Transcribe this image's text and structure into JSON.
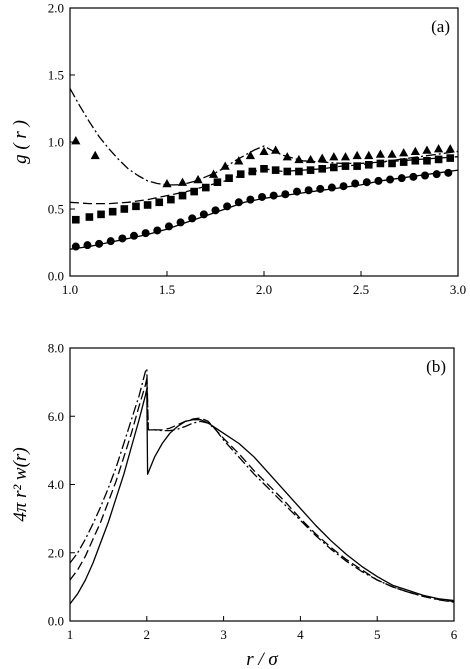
{
  "chart_data": [
    {
      "type": "line",
      "panel_label": "(a)",
      "ylabel": "g ( r )",
      "xlim": [
        1.0,
        3.0
      ],
      "ylim": [
        0.0,
        2.0
      ],
      "xticks": [
        "1.0",
        "1.5",
        "2.0",
        "2.5",
        "3.0"
      ],
      "yticks": [
        "0.0",
        "0.5",
        "1.0",
        "1.5",
        "2.0"
      ],
      "grid": false,
      "series": [
        {
          "style": "dash-dot",
          "kind": "line",
          "x": [
            1.0,
            1.05,
            1.1,
            1.15,
            1.2,
            1.25,
            1.3,
            1.35,
            1.4,
            1.45,
            1.5,
            1.55,
            1.6,
            1.65,
            1.7,
            1.75,
            1.8,
            1.85,
            1.9,
            1.95,
            2.0,
            2.05,
            2.1,
            2.2,
            2.3,
            2.4,
            2.5,
            2.6,
            2.7,
            2.8,
            2.9,
            3.0
          ],
          "y": [
            1.4,
            1.27,
            1.15,
            1.04,
            0.95,
            0.87,
            0.8,
            0.75,
            0.71,
            0.69,
            0.68,
            0.68,
            0.69,
            0.71,
            0.74,
            0.77,
            0.81,
            0.86,
            0.9,
            0.94,
            0.97,
            0.93,
            0.9,
            0.86,
            0.85,
            0.84,
            0.84,
            0.85,
            0.87,
            0.89,
            0.91,
            0.93
          ]
        },
        {
          "style": "dashed",
          "kind": "line",
          "x": [
            1.0,
            1.1,
            1.2,
            1.3,
            1.4,
            1.5,
            1.6,
            1.7,
            1.8,
            1.9,
            2.0,
            2.05,
            2.1,
            2.2,
            2.3,
            2.4,
            2.5,
            2.6,
            2.7,
            2.8,
            2.9,
            3.0
          ],
          "y": [
            0.55,
            0.54,
            0.54,
            0.55,
            0.57,
            0.6,
            0.63,
            0.67,
            0.71,
            0.76,
            0.8,
            0.79,
            0.78,
            0.79,
            0.8,
            0.82,
            0.83,
            0.85,
            0.86,
            0.87,
            0.88,
            0.89
          ]
        },
        {
          "style": "solid",
          "kind": "line",
          "x": [
            1.0,
            1.1,
            1.2,
            1.3,
            1.4,
            1.5,
            1.6,
            1.7,
            1.8,
            1.9,
            2.0,
            2.1,
            2.2,
            2.3,
            2.4,
            2.5,
            2.6,
            2.7,
            2.8,
            2.9,
            3.0
          ],
          "y": [
            0.2,
            0.22,
            0.25,
            0.28,
            0.31,
            0.35,
            0.4,
            0.45,
            0.5,
            0.55,
            0.58,
            0.6,
            0.62,
            0.64,
            0.66,
            0.68,
            0.71,
            0.73,
            0.75,
            0.77,
            0.79
          ]
        },
        {
          "marker": "triangle",
          "kind": "scatter",
          "x": [
            1.03,
            1.13,
            1.5,
            1.58,
            1.66,
            1.74,
            1.8,
            1.87,
            1.93,
            2.0,
            2.06,
            2.12,
            2.18,
            2.24,
            2.3,
            2.36,
            2.42,
            2.48,
            2.54,
            2.6,
            2.66,
            2.72,
            2.78,
            2.84,
            2.9,
            2.96
          ],
          "y": [
            1.01,
            0.9,
            0.69,
            0.7,
            0.72,
            0.76,
            0.82,
            0.86,
            0.9,
            0.93,
            0.94,
            0.89,
            0.87,
            0.87,
            0.88,
            0.89,
            0.89,
            0.9,
            0.9,
            0.91,
            0.91,
            0.92,
            0.93,
            0.94,
            0.95,
            0.95
          ]
        },
        {
          "marker": "square",
          "kind": "scatter",
          "x": [
            1.03,
            1.1,
            1.16,
            1.22,
            1.28,
            1.34,
            1.4,
            1.46,
            1.52,
            1.58,
            1.64,
            1.7,
            1.76,
            1.82,
            1.88,
            1.94,
            2.0,
            2.06,
            2.12,
            2.18,
            2.24,
            2.3,
            2.36,
            2.42,
            2.48,
            2.54,
            2.6,
            2.66,
            2.72,
            2.78,
            2.84,
            2.9,
            2.96
          ],
          "y": [
            0.42,
            0.44,
            0.46,
            0.48,
            0.5,
            0.52,
            0.53,
            0.55,
            0.57,
            0.6,
            0.63,
            0.66,
            0.7,
            0.73,
            0.76,
            0.78,
            0.8,
            0.79,
            0.78,
            0.78,
            0.79,
            0.8,
            0.81,
            0.82,
            0.82,
            0.83,
            0.84,
            0.84,
            0.85,
            0.86,
            0.86,
            0.87,
            0.88
          ]
        },
        {
          "marker": "circle",
          "kind": "scatter",
          "x": [
            1.03,
            1.09,
            1.15,
            1.21,
            1.27,
            1.33,
            1.39,
            1.45,
            1.51,
            1.57,
            1.63,
            1.69,
            1.75,
            1.81,
            1.87,
            1.93,
            1.99,
            2.05,
            2.11,
            2.17,
            2.23,
            2.29,
            2.35,
            2.41,
            2.47,
            2.53,
            2.59,
            2.65,
            2.71,
            2.77,
            2.83,
            2.89,
            2.95
          ],
          "y": [
            0.22,
            0.23,
            0.24,
            0.26,
            0.28,
            0.3,
            0.32,
            0.34,
            0.37,
            0.4,
            0.43,
            0.46,
            0.49,
            0.52,
            0.55,
            0.57,
            0.59,
            0.6,
            0.61,
            0.63,
            0.64,
            0.65,
            0.66,
            0.67,
            0.69,
            0.7,
            0.71,
            0.72,
            0.73,
            0.74,
            0.75,
            0.76,
            0.77
          ]
        }
      ]
    },
    {
      "type": "line",
      "panel_label": "(b)",
      "xlabel": "r / σ",
      "ylabel": "4π r² w(r)",
      "xlim": [
        1,
        6
      ],
      "ylim": [
        0.0,
        8.0
      ],
      "xticks": [
        "1",
        "2",
        "3",
        "4",
        "5",
        "6"
      ],
      "yticks": [
        "0.0",
        "2.0",
        "4.0",
        "6.0",
        "8.0"
      ],
      "grid": false,
      "series": [
        {
          "style": "solid",
          "kind": "line",
          "x": [
            1.0,
            1.1,
            1.2,
            1.3,
            1.4,
            1.5,
            1.6,
            1.7,
            1.8,
            1.9,
            1.98,
            2.0,
            2.01,
            2.1,
            2.2,
            2.3,
            2.4,
            2.5,
            2.6,
            2.7,
            2.8,
            2.9,
            3.0,
            3.2,
            3.4,
            3.6,
            3.8,
            4.0,
            4.2,
            4.4,
            4.6,
            4.8,
            5.0,
            5.2,
            5.4,
            5.6,
            5.8,
            6.0
          ],
          "y": [
            0.5,
            0.8,
            1.2,
            1.7,
            2.3,
            2.9,
            3.6,
            4.3,
            5.1,
            5.9,
            6.6,
            6.8,
            4.3,
            4.8,
            5.2,
            5.5,
            5.7,
            5.85,
            5.9,
            5.9,
            5.8,
            5.65,
            5.5,
            5.2,
            4.8,
            4.3,
            3.8,
            3.3,
            2.8,
            2.35,
            1.95,
            1.6,
            1.3,
            1.05,
            0.9,
            0.75,
            0.65,
            0.6
          ]
        },
        {
          "style": "dashed",
          "kind": "line",
          "x": [
            1.0,
            1.1,
            1.2,
            1.3,
            1.4,
            1.5,
            1.6,
            1.7,
            1.8,
            1.9,
            1.98,
            2.0,
            2.02,
            2.1,
            2.2,
            2.3,
            2.4,
            2.5,
            2.6,
            2.7,
            2.8,
            2.9,
            3.0,
            3.2,
            3.4,
            3.6,
            3.8,
            4.0,
            4.2,
            4.4,
            4.6,
            4.8,
            5.0,
            5.2,
            5.4,
            5.6,
            5.8,
            6.0
          ],
          "y": [
            1.2,
            1.5,
            1.9,
            2.4,
            2.9,
            3.5,
            4.1,
            4.8,
            5.5,
            6.3,
            6.9,
            7.1,
            5.6,
            5.6,
            5.6,
            5.65,
            5.75,
            5.85,
            5.92,
            5.95,
            5.85,
            5.6,
            5.35,
            4.9,
            4.4,
            3.95,
            3.5,
            3.0,
            2.55,
            2.15,
            1.8,
            1.5,
            1.2,
            1.0,
            0.85,
            0.72,
            0.63,
            0.57
          ]
        },
        {
          "style": "dash-dot",
          "kind": "line",
          "x": [
            1.0,
            1.1,
            1.2,
            1.3,
            1.4,
            1.5,
            1.6,
            1.7,
            1.8,
            1.9,
            1.98,
            2.0,
            2.02,
            2.1,
            2.2,
            2.3,
            2.4,
            2.5,
            2.6,
            2.7,
            2.8,
            2.9,
            3.0,
            3.2,
            3.4,
            3.6,
            3.8,
            4.0,
            4.2,
            4.4,
            4.6,
            4.8,
            5.0,
            5.2,
            5.4,
            5.6,
            5.8,
            6.0
          ],
          "y": [
            1.7,
            2.0,
            2.4,
            2.85,
            3.35,
            3.9,
            4.5,
            5.2,
            5.9,
            6.6,
            7.3,
            7.4,
            5.6,
            5.6,
            5.58,
            5.58,
            5.62,
            5.7,
            5.8,
            5.85,
            5.8,
            5.6,
            5.3,
            4.8,
            4.3,
            3.85,
            3.4,
            2.95,
            2.5,
            2.1,
            1.75,
            1.45,
            1.2,
            1.0,
            0.85,
            0.72,
            0.62,
            0.55
          ]
        }
      ]
    }
  ]
}
